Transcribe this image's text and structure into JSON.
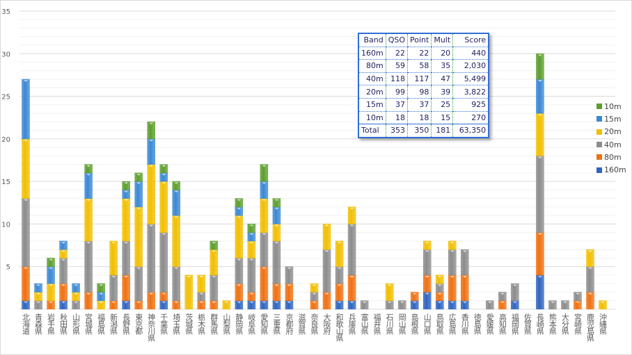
{
  "chart_data": {
    "type": "bar",
    "stacked": true,
    "title": "",
    "xlabel": "",
    "ylabel": "",
    "ylim": [
      0,
      35
    ],
    "yticks": [
      5,
      10,
      15,
      20,
      25,
      30,
      35
    ],
    "grid": true,
    "legend_position": "right",
    "categories": [
      "北海道",
      "青森県",
      "岩手県",
      "秋田県",
      "山形県",
      "宮城県",
      "福島県",
      "新潟県",
      "長野県",
      "東京都",
      "神奈川県",
      "千葉県",
      "埼玉県",
      "茨城県",
      "栃木県",
      "群馬県",
      "山梨県",
      "静岡県",
      "岐阜県",
      "愛知県",
      "三重県",
      "京都府",
      "滋賀県",
      "奈良県",
      "大阪府",
      "和歌山県",
      "兵庫県",
      "富山県",
      "福井県",
      "石川県",
      "岡山県",
      "島根県",
      "山口県",
      "鳥取県",
      "広島県",
      "香川県",
      "徳島県",
      "愛媛県",
      "高知県",
      "福岡県",
      "佐賀県",
      "長崎県",
      "熊本県",
      "大分県",
      "宮崎県",
      "鹿児島県",
      "沖縄県"
    ],
    "series": [
      {
        "name": "160m",
        "color": "#2e64c0",
        "values": [
          1,
          0,
          0,
          1,
          0,
          0,
          0,
          0,
          1,
          0,
          0,
          1,
          0,
          0,
          0,
          0,
          0,
          1,
          1,
          1,
          1,
          1,
          0,
          0,
          0,
          1,
          1,
          0,
          0,
          0,
          0,
          1,
          2,
          1,
          1,
          1,
          0,
          0,
          0,
          1,
          0,
          4,
          0,
          0,
          0,
          0,
          0
        ]
      },
      {
        "name": "80m",
        "color": "#f07010",
        "values": [
          4,
          0,
          1,
          2,
          0,
          2,
          0,
          1,
          3,
          1,
          2,
          1,
          1,
          0,
          1,
          1,
          0,
          2,
          1,
          4,
          2,
          2,
          0,
          1,
          2,
          2,
          3,
          0,
          0,
          0,
          0,
          1,
          2,
          1,
          3,
          3,
          0,
          0,
          1,
          0,
          0,
          5,
          0,
          0,
          1,
          2,
          0
        ]
      },
      {
        "name": "40m",
        "color": "#8c8c8c",
        "values": [
          8,
          1,
          0,
          3,
          1,
          6,
          0,
          3,
          4,
          4,
          8,
          7,
          4,
          0,
          1,
          3,
          0,
          3,
          4,
          4,
          5,
          2,
          0,
          1,
          5,
          2,
          6,
          1,
          0,
          1,
          1,
          0,
          3,
          1,
          3,
          3,
          0,
          1,
          1,
          2,
          0,
          9,
          1,
          1,
          1,
          3,
          0
        ]
      },
      {
        "name": "20m",
        "color": "#f2bf00",
        "values": [
          7,
          1,
          2,
          1,
          1,
          5,
          1,
          4,
          5,
          7,
          7,
          6,
          6,
          4,
          2,
          3,
          1,
          5,
          2,
          4,
          2,
          0,
          0,
          1,
          3,
          3,
          2,
          0,
          0,
          2,
          0,
          0,
          1,
          1,
          1,
          0,
          0,
          0,
          0,
          0,
          0,
          5,
          0,
          0,
          0,
          2,
          1
        ]
      },
      {
        "name": "15m",
        "color": "#3a88d4",
        "values": [
          7,
          1,
          2,
          1,
          1,
          3,
          1,
          0,
          1,
          3,
          3,
          1,
          3,
          0,
          0,
          0,
          0,
          1,
          1,
          2,
          2,
          0,
          0,
          0,
          0,
          0,
          0,
          0,
          0,
          0,
          0,
          0,
          0,
          0,
          0,
          0,
          0,
          0,
          0,
          0,
          0,
          4,
          0,
          0,
          0,
          0,
          0
        ]
      },
      {
        "name": "10m",
        "color": "#5c9e2c",
        "values": [
          0,
          0,
          1,
          0,
          0,
          1,
          1,
          0,
          1,
          1,
          2,
          1,
          1,
          0,
          0,
          1,
          0,
          1,
          1,
          2,
          1,
          0,
          0,
          0,
          0,
          0,
          0,
          0,
          0,
          0,
          0,
          0,
          0,
          0,
          0,
          0,
          0,
          0,
          0,
          0,
          0,
          3,
          0,
          0,
          0,
          0,
          0
        ]
      }
    ]
  },
  "table": {
    "headers": [
      "Band",
      "QSO",
      "Point",
      "Mult",
      "Score"
    ],
    "rows": [
      [
        "160m",
        "22",
        "22",
        "20",
        "440"
      ],
      [
        "80m",
        "59",
        "58",
        "35",
        "2,030"
      ],
      [
        "40m",
        "118",
        "117",
        "47",
        "5,499"
      ],
      [
        "20m",
        "99",
        "98",
        "39",
        "3,822"
      ],
      [
        "15m",
        "37",
        "37",
        "25",
        "925"
      ],
      [
        "10m",
        "18",
        "18",
        "15",
        "270"
      ]
    ],
    "total": [
      "Total",
      "353",
      "350",
      "181",
      "63,350"
    ]
  }
}
